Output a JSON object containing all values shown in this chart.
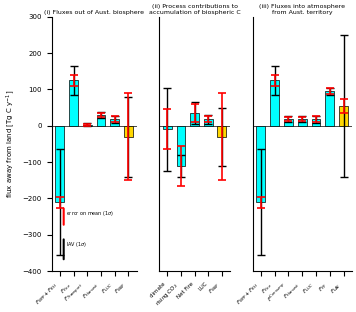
{
  "panel1": {
    "title": "(i) Fluxes out of Aust. biosphere",
    "bars": [
      {
        "label": "$F_{NPP}+F_{RH}$",
        "value": -210,
        "color": "#00FFFF",
        "iav": 145,
        "err": 15
      },
      {
        "label": "$F_{Fire}$",
        "value": 125,
        "color": "#00FFFF",
        "iav": 40,
        "err": 15
      },
      {
        "label": "$F_{Transport}$",
        "value": 3,
        "color": "#00FFFF",
        "iav": 5,
        "err": 3
      },
      {
        "label": "$F_{Harvest}$",
        "value": 30,
        "color": "#00FFFF",
        "iav": 8,
        "err": 5
      },
      {
        "label": "$F_{LUC}$",
        "value": 18,
        "color": "#00FFFF",
        "iav": 10,
        "err": 8
      },
      {
        "label": "$F_{NBP}$",
        "value": -30,
        "color": "#FFD700",
        "iav": 110,
        "err": 120
      }
    ]
  },
  "panel2": {
    "title": "(ii) Process contributions to\naccumulation of biospheric C",
    "bars": [
      {
        "label": "climate",
        "value": -10,
        "color": "#00FFFF",
        "iav": 115,
        "err": 55
      },
      {
        "label": "rising $CO_2$",
        "value": -110,
        "color": "#00FFFF",
        "iav": 30,
        "err": 55
      },
      {
        "label": "Net Fire",
        "value": 35,
        "color": "#00FFFF",
        "iav": 30,
        "err": 25
      },
      {
        "label": "LUC",
        "value": 18,
        "color": "#00FFFF",
        "iav": 12,
        "err": 8
      },
      {
        "label": "$F_{NBP}$",
        "value": -30,
        "color": "#FFD700",
        "iav": 80,
        "err": 120
      }
    ]
  },
  "panel3": {
    "title": "(iii) Fluxes into atmosphere\nfrom Aust. territory",
    "bars": [
      {
        "label": "$F_{NPP}+F_{RH}$",
        "value": -210,
        "color": "#00FFFF",
        "iav": 145,
        "err": 15
      },
      {
        "label": "$F_{Fire}$",
        "value": 125,
        "color": "#00FFFF",
        "iav": 40,
        "err": 15
      },
      {
        "label": "$F_{Consump}^{Consump}$",
        "value": 18,
        "color": "#00FFFF",
        "iav": 8,
        "err": 5
      },
      {
        "label": "$F_{Harvest}$",
        "value": 18,
        "color": "#00FFFF",
        "iav": 8,
        "err": 5
      },
      {
        "label": "$F_{LUC}$",
        "value": 18,
        "color": "#00FFFF",
        "iav": 10,
        "err": 8
      },
      {
        "label": "$F_{FF}$",
        "value": 95,
        "color": "#00FFFF",
        "iav": 10,
        "err": 8
      },
      {
        "label": "$F_{LAE}$",
        "value": 55,
        "color": "#FFD700",
        "iav": 195,
        "err": 20
      }
    ]
  },
  "ylabel": "flux away from land [Tg C y$^{-1}$]",
  "ylim": [
    -400,
    300
  ],
  "yticks": [
    -400,
    -300,
    -200,
    -100,
    0,
    100,
    200,
    300
  ]
}
